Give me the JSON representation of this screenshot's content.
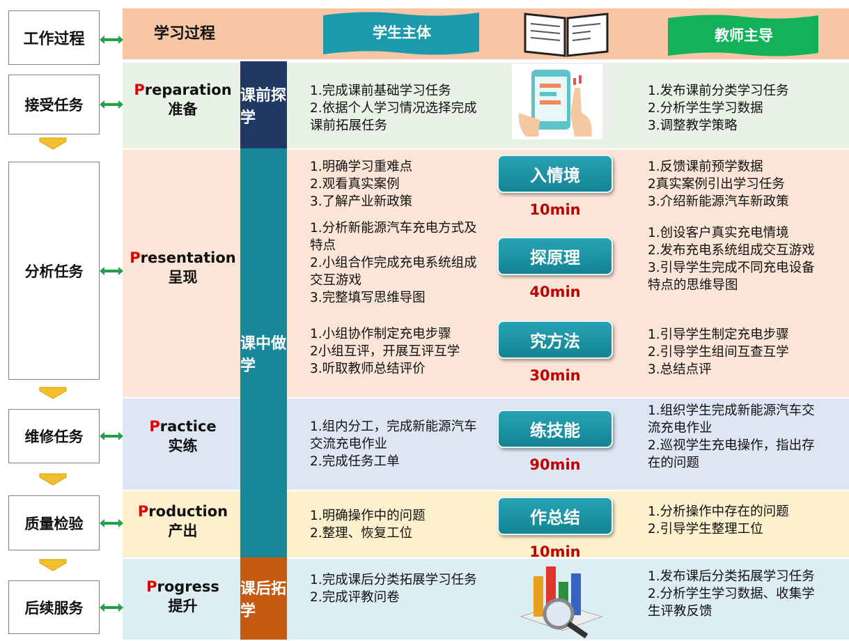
{
  "header": {
    "work_process": "工作过程",
    "learning_process": "学习过程",
    "student": "学生主体",
    "teacher": "教师主导"
  },
  "work_tasks": [
    "接受任务",
    "分析任务",
    "维修任务",
    "质量检验",
    "后续服务"
  ],
  "phases": [
    "课前探学",
    "课中做学",
    "课后拓学"
  ],
  "stages": [
    {
      "name_en": "Preparation",
      "name_cn": "准备",
      "activities": [
        {
          "student": [
            "1.完成课前基础学习任务",
            "2.依据个人学习情况选择完成课前拓展任务"
          ],
          "teacher": [
            "1.发布课前分类学习任务",
            "2.分析学生学习数据",
            "3.调整教学策略"
          ]
        }
      ]
    },
    {
      "name_en": "Presentation",
      "name_cn": "呈现",
      "activities": [
        {
          "student": [
            "1.明确学习重难点",
            "2.观看真实案例",
            "3.了解产业新政策"
          ],
          "step": "入情境",
          "duration": "10min",
          "teacher": [
            "1.反馈课前预学数据",
            "2真实案例引出学习任务",
            "3.介绍新能源汽车新政策"
          ]
        },
        {
          "student": [
            "1.分析新能源汽车充电方式及特点",
            "2.小组合作完成充电系统组成交互游戏",
            "3.完整填写思维导图"
          ],
          "step": "探原理",
          "duration": "40min",
          "teacher": [
            "1.创设客户真实充电情境",
            "2.发布充电系统组成交互游戏",
            "3.引导学生完成不同充电设备特点的思维导图"
          ]
        },
        {
          "student": [
            "1.小组协作制定充电步骤",
            "2小组互评，开展互评互学",
            "3.听取教师总结评价"
          ],
          "step": "究方法",
          "duration": "30min",
          "teacher": [
            "1.引导学生制定充电步骤",
            "2.引导学生组间互查互学",
            "3.总结点评"
          ]
        }
      ]
    },
    {
      "name_en": "Practice",
      "name_cn": "实练",
      "activities": [
        {
          "student": [
            "1.组内分工，完成新能源汽车交流充电作业",
            "2.完成任务工单"
          ],
          "step": "练技能",
          "duration": "90min",
          "teacher": [
            "1.组织学生完成新能源汽车交流充电作业",
            "2.巡视学生充电操作，指出存在的问题"
          ]
        }
      ]
    },
    {
      "name_en": "Production",
      "name_cn": "产出",
      "activities": [
        {
          "student": [
            "1.明确操作中的问题",
            "2.整理、恢复工位"
          ],
          "step": "作总结",
          "duration": "10min",
          "teacher": [
            "1.分析操作中存在的问题",
            "2.引导学生整理工位"
          ]
        }
      ]
    },
    {
      "name_en": "Progress",
      "name_cn": "提升",
      "activities": [
        {
          "student": [
            "1.完成课后分类拓展学习任务",
            "2.完成评教问卷"
          ],
          "teacher": [
            "1.发布课后分类拓展学习任务",
            "2.分析学生学习数据、收集学生评教反馈"
          ]
        }
      ]
    }
  ]
}
